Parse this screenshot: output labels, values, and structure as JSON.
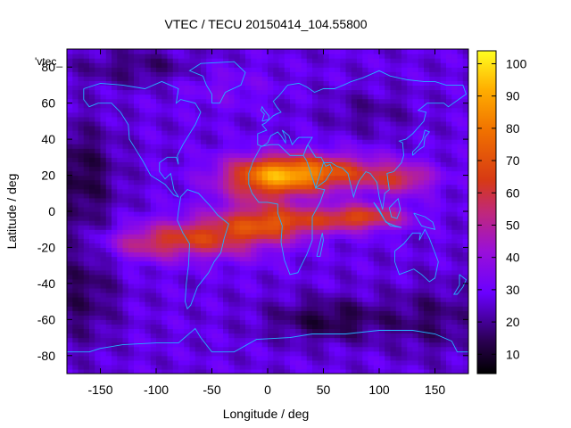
{
  "chart_data": {
    "type": "heatmap",
    "title": "VTEC / TECU 20150414_104.55800",
    "xlabel": "Longitude / deg",
    "ylabel": "Latitude / deg",
    "legend_label": "'vtec_",
    "xlim": [
      -180,
      180
    ],
    "ylim": [
      -90,
      90
    ],
    "x_ticks": [
      -150,
      -100,
      -50,
      0,
      50,
      100,
      150
    ],
    "y_ticks": [
      -80,
      -60,
      -40,
      -20,
      0,
      20,
      40,
      60,
      80
    ],
    "colorbar": {
      "range": [
        4,
        104
      ],
      "ticks": [
        10,
        20,
        30,
        40,
        50,
        60,
        70,
        80,
        90,
        100
      ],
      "palette": "black-purple-red-yellow"
    },
    "grid": false,
    "features": [
      {
        "name": "equatorial-crest-africa",
        "lon": 5,
        "lat": 20,
        "value": 104
      },
      {
        "name": "equatorial-crest-indian-ocean",
        "lon": 80,
        "lat": -3,
        "value": 75
      },
      {
        "name": "equatorial-crest-south-america",
        "lon": -40,
        "lat": -12,
        "value": 62
      },
      {
        "name": "night-minimum-pacific",
        "lon": -165,
        "lat": 20,
        "value": 10
      },
      {
        "name": "night-minimum-southern-ocean",
        "lon": 50,
        "lat": -60,
        "value": 10
      }
    ]
  }
}
